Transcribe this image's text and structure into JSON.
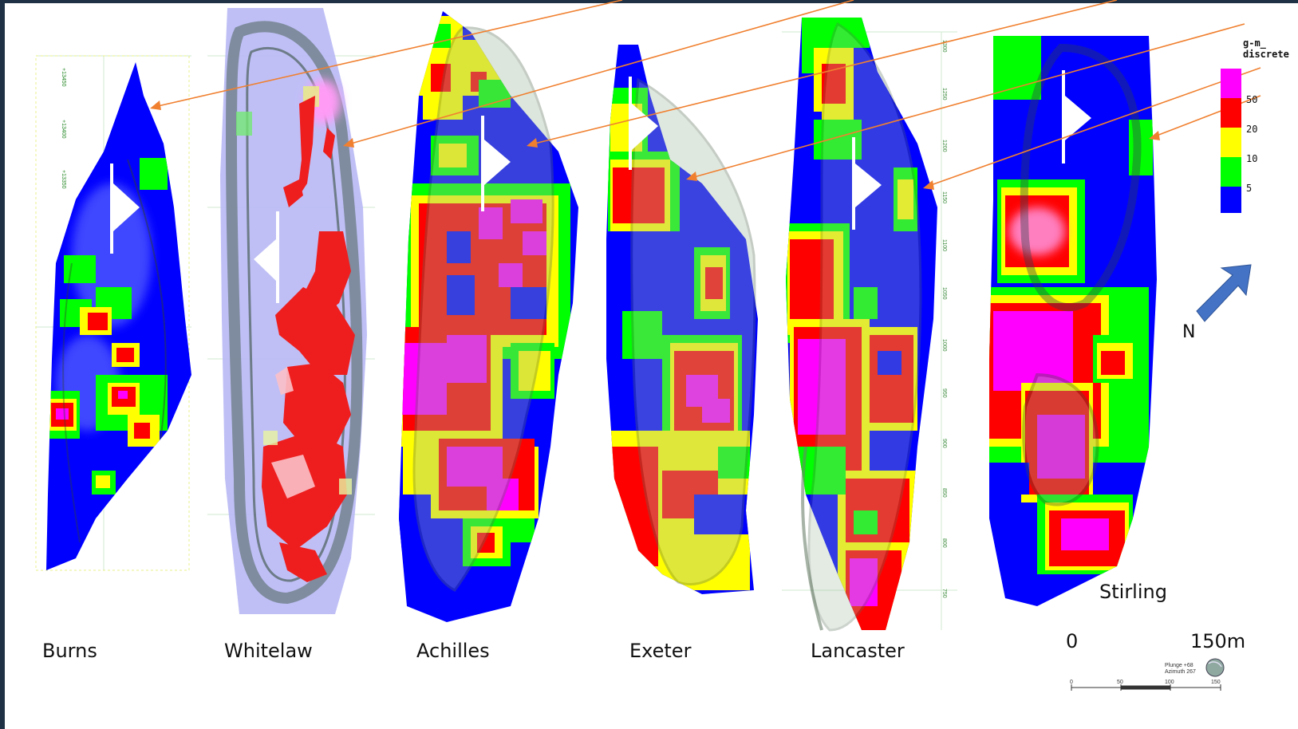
{
  "deposits": [
    {
      "name": "Burns"
    },
    {
      "name": "Whitelaw"
    },
    {
      "name": "Achilles"
    },
    {
      "name": "Exeter"
    },
    {
      "name": "Lancaster"
    },
    {
      "name": "Stirling"
    }
  ],
  "legend": {
    "title_line1": "g-m_",
    "title_line2": "discrete",
    "entries": [
      {
        "label": "50",
        "color": "#ff00ff"
      },
      {
        "label": "20",
        "color": "#ff0000"
      },
      {
        "label": "10",
        "color": "#ffff00"
      },
      {
        "label": "5",
        "color": "#00ff00"
      },
      {
        "label": "",
        "color": "#0000ff"
      }
    ]
  },
  "north_label": "N",
  "scale_bar": {
    "start_label": "0",
    "end_label": "150m",
    "tick_labels": [
      "0",
      "50",
      "100",
      "150"
    ],
    "plunge_text": "Plunge +68",
    "azimuth_text": "Azimuth 267"
  },
  "colors": {
    "magenta": "#ff00ff",
    "red": "#ff0000",
    "yellow": "#ffff00",
    "green": "#00ff00",
    "blue": "#0000ff",
    "arrow_orange": "#f08030",
    "north_arrow": "#4472c4"
  }
}
